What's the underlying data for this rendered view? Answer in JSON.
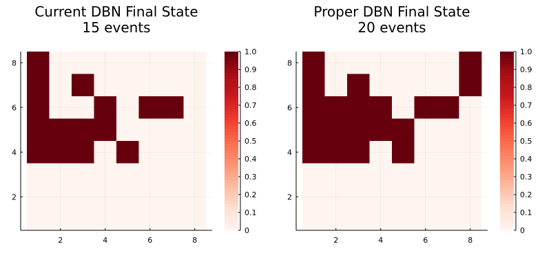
{
  "figure": {
    "background": "#ffffff",
    "colormap": {
      "name": "Reds",
      "low": "#fff5f0",
      "high": "#67000d",
      "stops": [
        "#fff5f0",
        "#fee0d2",
        "#fcbba1",
        "#fc9272",
        "#fb6a4a",
        "#ef3b2c",
        "#cb181d",
        "#a50f15",
        "#67000d"
      ]
    }
  },
  "chart_data": [
    {
      "type": "heatmap",
      "title": "Current DBN Final State\n15 events",
      "title_lines": [
        "Current DBN Final State",
        "15 events"
      ],
      "xlabel": "",
      "ylabel": "",
      "x_ticks": [
        "2",
        "4",
        "6",
        "8"
      ],
      "y_ticks": [
        "2",
        "4",
        "6",
        "8"
      ],
      "x_tick_values": [
        2,
        4,
        6,
        8
      ],
      "y_tick_values": [
        2,
        4,
        6,
        8
      ],
      "xlim": [
        0.5,
        8.5
      ],
      "ylim": [
        0.5,
        8.5
      ],
      "grid": true,
      "colorbar": {
        "range": [
          0,
          1
        ],
        "ticks": [
          "0",
          "0.1",
          "0.2",
          "0.3",
          "0.4",
          "0.5",
          "0.6",
          "0.7",
          "0.8",
          "0.9",
          "1.0"
        ]
      },
      "z_rows_top_to_bottom": [
        [
          1,
          0,
          0,
          0,
          0,
          0,
          0,
          0
        ],
        [
          1,
          0,
          1,
          0,
          0,
          0,
          0,
          0
        ],
        [
          1,
          0,
          0,
          1,
          0,
          1,
          1,
          0
        ],
        [
          1,
          1,
          1,
          1,
          0,
          0,
          0,
          0
        ],
        [
          1,
          1,
          1,
          0,
          1,
          0,
          0,
          0
        ],
        [
          0,
          0,
          0,
          0,
          0,
          0,
          0,
          0
        ],
        [
          0,
          0,
          0,
          0,
          0,
          0,
          0,
          0
        ],
        [
          0,
          0,
          0,
          0,
          0,
          0,
          0,
          0
        ]
      ]
    },
    {
      "type": "heatmap",
      "title": "Proper DBN Final State\n20 events",
      "title_lines": [
        "Proper DBN Final State",
        "20 events"
      ],
      "xlabel": "",
      "ylabel": "",
      "x_ticks": [
        "2",
        "4",
        "6",
        "8"
      ],
      "y_ticks": [
        "2",
        "4",
        "6",
        "8"
      ],
      "x_tick_values": [
        2,
        4,
        6,
        8
      ],
      "y_tick_values": [
        2,
        4,
        6,
        8
      ],
      "xlim": [
        0.5,
        8.5
      ],
      "ylim": [
        0.5,
        8.5
      ],
      "grid": true,
      "colorbar": {
        "range": [
          0,
          1
        ],
        "ticks": [
          "0",
          "0.1",
          "0.2",
          "0.3",
          "0.4",
          "0.5",
          "0.6",
          "0.7",
          "0.8",
          "0.9",
          "1.0"
        ]
      },
      "z_rows_top_to_bottom": [
        [
          1,
          0,
          0,
          0,
          0,
          0,
          0,
          1
        ],
        [
          1,
          0,
          1,
          0,
          0,
          0,
          0,
          1
        ],
        [
          1,
          1,
          1,
          1,
          0,
          1,
          1,
          0
        ],
        [
          1,
          1,
          1,
          1,
          1,
          0,
          0,
          0
        ],
        [
          1,
          1,
          1,
          0,
          1,
          0,
          0,
          0
        ],
        [
          0,
          0,
          0,
          0,
          0,
          0,
          0,
          0
        ],
        [
          0,
          0,
          0,
          0,
          0,
          0,
          0,
          0
        ],
        [
          0,
          0,
          0,
          0,
          0,
          0,
          0,
          0
        ]
      ]
    }
  ]
}
